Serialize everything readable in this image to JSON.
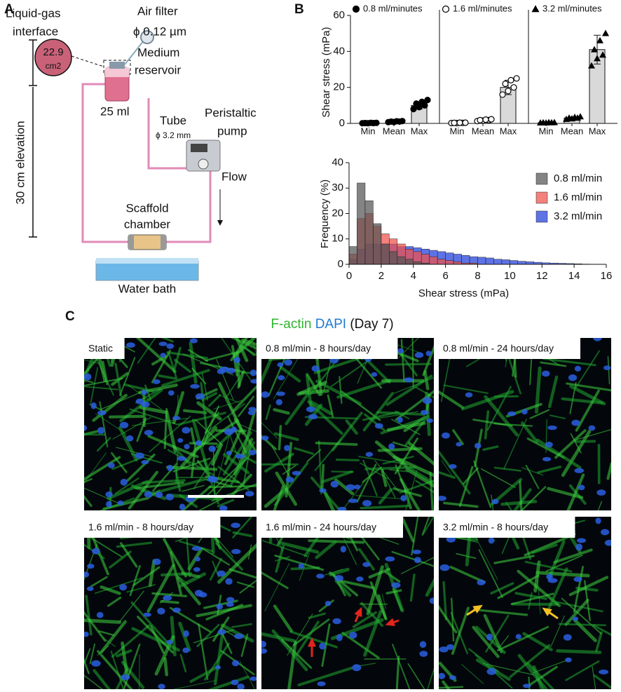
{
  "panel_labels": [
    "A",
    "B",
    "C"
  ],
  "diagram": {
    "interface_label": [
      "Liquid-gas",
      "interface"
    ],
    "area": [
      "22.9",
      "cm2"
    ],
    "air_filter": [
      "Air filter",
      "ϕ 0.12 µm"
    ],
    "reservoir": [
      "Medium",
      "reservoir"
    ],
    "volume": "25 ml",
    "tube": [
      "Tube",
      "ϕ 3.2 mm"
    ],
    "pump": [
      "Peristaltic",
      "pump"
    ],
    "flow": "Flow",
    "elevation": "30 cm elevation",
    "chamber": [
      "Scaffold",
      "chamber"
    ],
    "bath": "Water bath"
  },
  "chart_data": [
    {
      "type": "bar",
      "y_label": "Shear stress (mPa)",
      "ylim": [
        0,
        60
      ],
      "yticks": [
        0,
        20,
        40,
        60
      ],
      "categories": [
        "Min",
        "Mean",
        "Max"
      ],
      "bar_color": "#d9d9d9",
      "series": [
        {
          "name": "0.8 ml/minutes",
          "marker": "circle",
          "color": "#000000",
          "hollow": false,
          "values": [
            0.2,
            1,
            10
          ],
          "errors": [
            0.1,
            0.3,
            2
          ],
          "points": [
            [
              0.1,
              0.1,
              0.2,
              0.2,
              0.3,
              0.3
            ],
            [
              0.7,
              0.8,
              1,
              1,
              1.2,
              1.3
            ],
            [
              8,
              9,
              10,
              11,
              12,
              13
            ]
          ]
        },
        {
          "name": "1.6 ml/minutes",
          "marker": "circle",
          "color": "#000000",
          "hollow": true,
          "values": [
            0.3,
            1.8,
            20
          ],
          "errors": [
            0.1,
            0.4,
            4
          ],
          "points": [
            [
              0.2,
              0.2,
              0.3,
              0.3,
              0.4,
              0.4
            ],
            [
              1.3,
              1.5,
              1.8,
              1.8,
              2.1,
              2.3
            ],
            [
              16,
              18,
              20,
              22,
              24,
              25
            ]
          ]
        },
        {
          "name": "3.2 ml/minutes",
          "marker": "triangle",
          "color": "#000000",
          "hollow": false,
          "values": [
            0.4,
            3,
            41
          ],
          "errors": [
            0.1,
            0.6,
            8
          ],
          "points": [
            [
              0.3,
              0.3,
              0.4,
              0.4,
              0.5,
              0.5
            ],
            [
              2.3,
              2.6,
              3,
              3,
              3.4,
              3.7
            ],
            [
              32,
              36,
              38,
              41,
              46,
              50
            ]
          ]
        }
      ]
    },
    {
      "type": "histogram",
      "x_label": "Shear stress (mPa)",
      "y_label": "Frequency (%)",
      "xlim": [
        0,
        16
      ],
      "xticks": [
        0,
        2,
        4,
        6,
        8,
        10,
        12,
        14,
        16
      ],
      "ylim": [
        0,
        40
      ],
      "yticks": [
        0,
        10,
        20,
        30,
        40
      ],
      "bins": [
        0,
        0.5,
        1,
        1.5,
        2,
        2.5,
        3,
        3.5,
        4,
        4.5,
        5,
        5.5,
        6,
        6.5,
        7,
        7.5,
        8,
        8.5,
        9,
        9.5,
        10,
        10.5,
        11,
        11.5,
        12,
        12.5,
        13,
        13.5,
        14,
        14.5,
        15,
        15.5,
        16
      ],
      "series": [
        {
          "name": "3.2 ml/min",
          "color": "#1f3ddb",
          "values": [
            2,
            6,
            8,
            8,
            8,
            8,
            7,
            7,
            6.5,
            6,
            5.5,
            5,
            4.5,
            4,
            3.5,
            3,
            2.8,
            2.5,
            2,
            1.8,
            1.5,
            1.2,
            1,
            0.8,
            0.6,
            0.5,
            0.4,
            0.3,
            0.2,
            0.1,
            0,
            0
          ]
        },
        {
          "name": "1.6 ml/min",
          "color": "#f0504a",
          "values": [
            4,
            18,
            20,
            15,
            12,
            10,
            8,
            6,
            5,
            4,
            3,
            2,
            1.5,
            1,
            0.5,
            0.5,
            0,
            0,
            0,
            0,
            0,
            0,
            0,
            0,
            0,
            0,
            0,
            0,
            0,
            0,
            0,
            0
          ]
        },
        {
          "name": "0.8 ml/min",
          "color": "#555555",
          "values": [
            7,
            32,
            25,
            16,
            8,
            5,
            3,
            2,
            1,
            0.5,
            0,
            0,
            0,
            0,
            0,
            0,
            0,
            0,
            0,
            0,
            0,
            0,
            0,
            0,
            0,
            0,
            0,
            0,
            0,
            0,
            0,
            0
          ]
        }
      ]
    }
  ],
  "panel_c": {
    "title": [
      "F-actin",
      "DAPI",
      "(Day 7)"
    ],
    "title_colors": [
      "#2db52d",
      "#1f78d1",
      "#111111"
    ],
    "images": [
      "Static",
      "0.8 ml/min - 8 hours/day",
      "0.8 ml/min - 24 hours/day",
      "1.6 ml/min - 8 hours/day",
      "1.6 ml/min - 24 hours/day",
      "3.2 ml/min - 8 hours/day"
    ]
  }
}
